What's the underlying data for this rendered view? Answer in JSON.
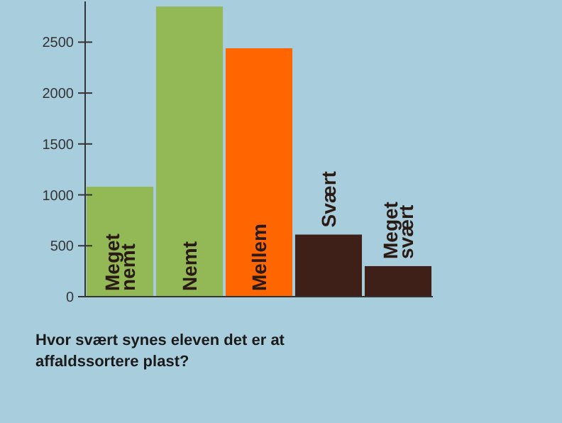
{
  "chart_data": {
    "type": "bar",
    "title": "Hvor svært synes eleven det er at affaldssortere plast?",
    "categories": [
      "Meget nemt",
      "Nemt",
      "Mellem",
      "Svært",
      "Meget svært"
    ],
    "values": [
      1080,
      2850,
      2440,
      610,
      300
    ],
    "colors": [
      "#93b957",
      "#93b957",
      "#ff6600",
      "#3f2019",
      "#3f2019"
    ],
    "ylim": [
      0,
      2900
    ],
    "yticks": [
      0,
      500,
      1000,
      1500,
      2000,
      2500
    ],
    "grid": false
  }
}
